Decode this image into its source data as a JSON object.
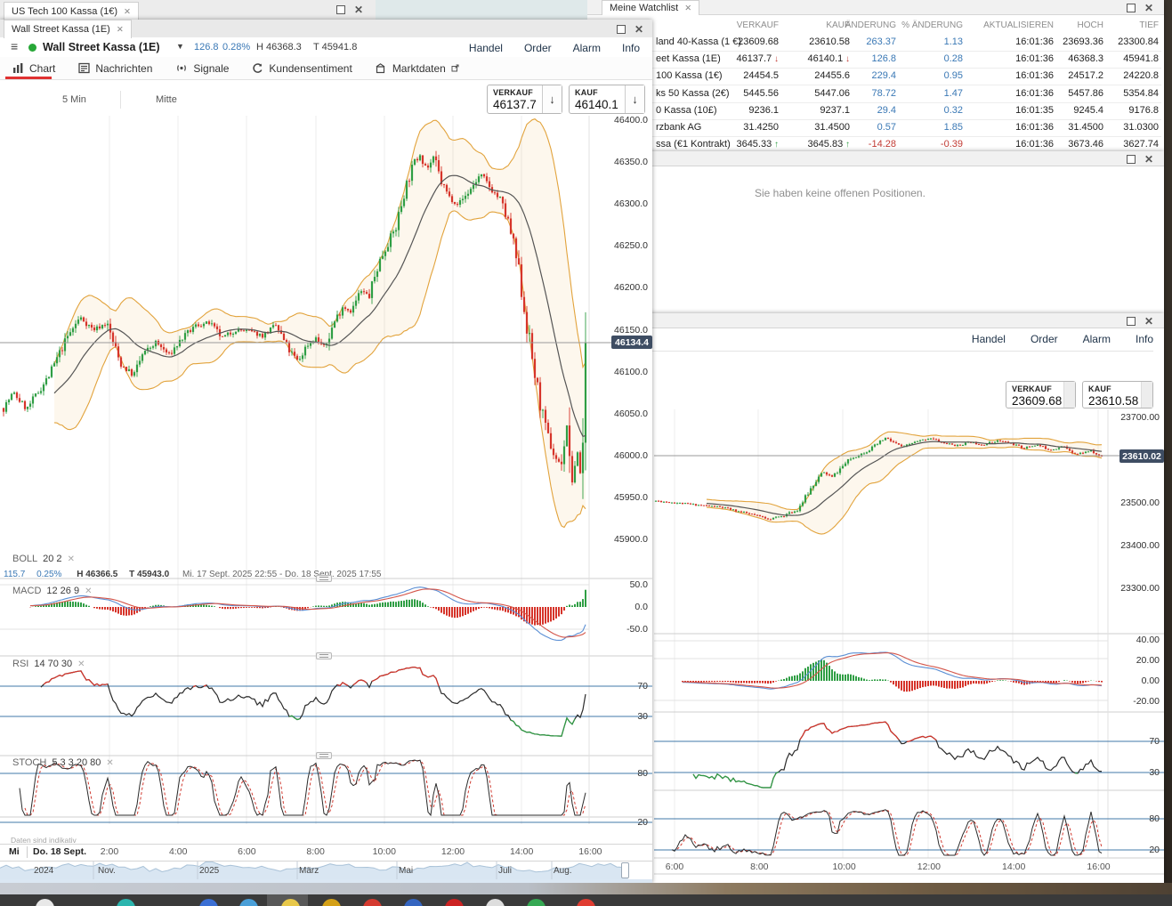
{
  "us_tech_window": {
    "tab": "US Tech 100 Kassa (1€)"
  },
  "watchlist": {
    "tab": "Meine Watchlist",
    "columns": [
      "VERKAUF",
      "KAUF",
      "ÄNDERUNG",
      "% ÄNDERUNG",
      "AKTUALISIEREN",
      "HOCH",
      "TIEF"
    ],
    "rows": [
      {
        "name": "land 40-Kassa (1 €)",
        "verkauf": "23609.68",
        "kauf": "23610.58",
        "aenderung": "263.37",
        "pct": "1.13",
        "zeit": "16:01:36",
        "hoch": "23693.36",
        "tief": "23300.84",
        "dir": ""
      },
      {
        "name": "eet Kassa (1E)",
        "verkauf": "46137.7",
        "kauf": "46140.1",
        "aenderung": "126.8",
        "pct": "0.28",
        "zeit": "16:01:36",
        "hoch": "46368.3",
        "tief": "45941.8",
        "dir": "down"
      },
      {
        "name": "100 Kassa (1€)",
        "verkauf": "24454.5",
        "kauf": "24455.6",
        "aenderung": "229.4",
        "pct": "0.95",
        "zeit": "16:01:36",
        "hoch": "24517.2",
        "tief": "24220.8",
        "dir": ""
      },
      {
        "name": "ks 50 Kassa (2€)",
        "verkauf": "5445.56",
        "kauf": "5447.06",
        "aenderung": "78.72",
        "pct": "1.47",
        "zeit": "16:01:36",
        "hoch": "5457.86",
        "tief": "5354.84",
        "dir": ""
      },
      {
        "name": "0 Kassa (10£)",
        "verkauf": "9236.1",
        "kauf": "9237.1",
        "aenderung": "29.4",
        "pct": "0.32",
        "zeit": "16:01:35",
        "hoch": "9245.4",
        "tief": "9176.8",
        "dir": ""
      },
      {
        "name": "rzbank AG",
        "verkauf": "31.4250",
        "kauf": "31.4500",
        "aenderung": "0.57",
        "pct": "1.85",
        "zeit": "16:01:36",
        "hoch": "31.4500",
        "tief": "31.0300",
        "dir": ""
      },
      {
        "name": "ssa (€1 Kontrakt)",
        "verkauf": "3645.33",
        "kauf": "3645.83",
        "aenderung": "-14.28",
        "pct": "-0.39",
        "zeit": "16:01:36",
        "hoch": "3673.46",
        "tief": "3627.74",
        "dir": "up"
      }
    ]
  },
  "positions_panel": {
    "empty_text": "Sie haben keine offenen Positionen."
  },
  "left_chart": {
    "tab": "Wall Street Kassa (1E)",
    "instrument": "Wall Street Kassa (1E)",
    "change": "126.8",
    "change_pct": "0.28%",
    "high_label": "H 46368.3",
    "low_label": "T 45941.8",
    "menu": [
      "Handel",
      "Order",
      "Alarm",
      "Info"
    ],
    "nav_tabs": [
      {
        "label": "Chart",
        "icon": "chart-icon"
      },
      {
        "label": "Nachrichten",
        "icon": "news-icon"
      },
      {
        "label": "Signale",
        "icon": "signal-icon"
      },
      {
        "label": "Kundensentiment",
        "icon": "sentiment-icon"
      },
      {
        "label": "Marktdaten",
        "icon": "marketdata-icon"
      }
    ],
    "interval": "5 Min",
    "line_style": "Mitte",
    "sell": {
      "label": "VERKAUF",
      "value": "46137.7"
    },
    "buy": {
      "label": "KAUF",
      "value": "46140.1"
    },
    "price_badge": "46134.4",
    "price_ticks": [
      "46400.0",
      "46350.0",
      "46300.0",
      "46250.0",
      "46200.0",
      "46150.0",
      "46100.0",
      "46050.0",
      "46000.0",
      "45950.0",
      "45900.0"
    ],
    "macd_ticks": [
      "50.0",
      "0.0",
      "-50.0"
    ],
    "rsi_ticks": [
      "70",
      "30"
    ],
    "stoch_ticks": [
      "80",
      "20"
    ],
    "boll_label": {
      "name": "BOLL",
      "params": "20  2"
    },
    "boll_info": {
      "chg": "115.7",
      "pct": "0.25%",
      "h": "H 46366.5",
      "t": "T 45943.0",
      "range": "Mi. 17 Sept. 2025 22:55 - Do. 18 Sept. 2025 17:55"
    },
    "macd_label": {
      "name": "MACD",
      "params": "12  26  9"
    },
    "rsi_label": {
      "name": "RSI",
      "params": "14  70  30"
    },
    "stoch_label": {
      "name": "STOCH",
      "params": "5  3  3  20  80"
    },
    "disclaimer": "Daten sind indikativ",
    "time_axis": {
      "day": "Mi",
      "date": "Do. 18 Sept.",
      "ticks": [
        "2:00",
        "4:00",
        "6:00",
        "8:00",
        "10:00",
        "12:00",
        "14:00",
        "16:00"
      ]
    },
    "navigator_labels": [
      "2024",
      "Nov.",
      "2025",
      "März",
      "Mai",
      "Juli",
      "Aug."
    ],
    "price_anchors": [
      [
        0,
        46050
      ],
      [
        15,
        46075
      ],
      [
        30,
        46055
      ],
      [
        55,
        46095
      ],
      [
        75,
        46140
      ],
      [
        90,
        46165
      ],
      [
        105,
        46150
      ],
      [
        120,
        46158
      ],
      [
        135,
        46110
      ],
      [
        150,
        46095
      ],
      [
        160,
        46120
      ],
      [
        175,
        46135
      ],
      [
        190,
        46120
      ],
      [
        205,
        46140
      ],
      [
        220,
        46155
      ],
      [
        235,
        46158
      ],
      [
        250,
        46140
      ],
      [
        265,
        46150
      ],
      [
        280,
        46148
      ],
      [
        295,
        46143
      ],
      [
        310,
        46155
      ],
      [
        325,
        46125
      ],
      [
        335,
        46112
      ],
      [
        345,
        46132
      ],
      [
        355,
        46140
      ],
      [
        365,
        46128
      ],
      [
        375,
        46158
      ],
      [
        385,
        46178
      ],
      [
        395,
        46172
      ],
      [
        405,
        46196
      ],
      [
        415,
        46190
      ],
      [
        425,
        46228
      ],
      [
        435,
        46252
      ],
      [
        445,
        46272
      ],
      [
        455,
        46318
      ],
      [
        465,
        46348
      ],
      [
        472,
        46360
      ],
      [
        480,
        46342
      ],
      [
        488,
        46356
      ],
      [
        495,
        46328
      ],
      [
        505,
        46308
      ],
      [
        515,
        46300
      ],
      [
        525,
        46312
      ],
      [
        540,
        46335
      ],
      [
        552,
        46318
      ],
      [
        562,
        46305
      ],
      [
        572,
        46275
      ],
      [
        582,
        46225
      ],
      [
        592,
        46155
      ],
      [
        602,
        46090
      ],
      [
        612,
        46035
      ],
      [
        622,
        46002
      ],
      [
        630,
        45988
      ],
      [
        638,
        46040
      ],
      [
        643,
        45962
      ],
      [
        648,
        46012
      ],
      [
        653,
        45972
      ],
      [
        657,
        46045
      ],
      [
        660,
        46130
      ]
    ]
  },
  "right_chart": {
    "menu": [
      "Handel",
      "Order",
      "Alarm",
      "Info"
    ],
    "sell": {
      "label": "VERKAUF",
      "value": "23609.68"
    },
    "buy": {
      "label": "KAUF",
      "value": "23610.58"
    },
    "price_badge": "23610.02",
    "price_ticks": [
      "23700.00",
      "23500.00",
      "23400.00",
      "23300.00"
    ],
    "macd_ticks": [
      "40.00",
      "20.00",
      "0.00",
      "-20.00"
    ],
    "rsi_ticks": [
      "70",
      "30"
    ],
    "stoch_ticks": [
      "80",
      "20"
    ],
    "time_ticks": [
      "6:00",
      "8:00",
      "10:00",
      "12:00",
      "14:00",
      "16:00"
    ],
    "price_anchors": [
      [
        735,
        23505
      ],
      [
        760,
        23500
      ],
      [
        785,
        23495
      ],
      [
        810,
        23490
      ],
      [
        830,
        23480
      ],
      [
        850,
        23470
      ],
      [
        865,
        23462
      ],
      [
        880,
        23470
      ],
      [
        895,
        23482
      ],
      [
        905,
        23512
      ],
      [
        915,
        23548
      ],
      [
        925,
        23572
      ],
      [
        935,
        23560
      ],
      [
        945,
        23582
      ],
      [
        955,
        23602
      ],
      [
        965,
        23612
      ],
      [
        975,
        23622
      ],
      [
        985,
        23636
      ],
      [
        995,
        23652
      ],
      [
        1005,
        23640
      ],
      [
        1015,
        23630
      ],
      [
        1025,
        23640
      ],
      [
        1035,
        23646
      ],
      [
        1045,
        23652
      ],
      [
        1060,
        23640
      ],
      [
        1075,
        23634
      ],
      [
        1090,
        23642
      ],
      [
        1105,
        23636
      ],
      [
        1120,
        23646
      ],
      [
        1135,
        23640
      ],
      [
        1150,
        23628
      ],
      [
        1165,
        23636
      ],
      [
        1180,
        23624
      ],
      [
        1195,
        23632
      ],
      [
        1210,
        23614
      ],
      [
        1225,
        23622
      ],
      [
        1235,
        23610
      ]
    ]
  },
  "desktop": {
    "taskbar_icons": [
      {
        "name": "start",
        "color": "#e8e8e8"
      },
      {
        "name": "app-teal",
        "color": "#2bb5ae"
      },
      {
        "name": "app-blue-1",
        "color": "#3b6fd4"
      },
      {
        "name": "app-lightblue",
        "color": "#4a9fd8"
      },
      {
        "name": "app-active-yellow",
        "color": "#e8c84a"
      },
      {
        "name": "app-gold",
        "color": "#d4a017"
      },
      {
        "name": "app-red-1",
        "color": "#d43a2f"
      },
      {
        "name": "app-blue-2",
        "color": "#3465c0"
      },
      {
        "name": "app-red-2",
        "color": "#cc2222"
      },
      {
        "name": "app-white",
        "color": "#dddddd"
      },
      {
        "name": "app-green",
        "color": "#35a853"
      },
      {
        "name": "app-red-3",
        "color": "#e03c31"
      }
    ]
  },
  "colors": {
    "accent_blue": "#3a78b5",
    "negative_red": "#c23b34",
    "positive_green": "#2f9e44",
    "band_orange": "#e2a33c",
    "badge_slate": "#3e4d63",
    "ref_blue": "#4178a8",
    "tab_underline_red": "#e03131"
  }
}
